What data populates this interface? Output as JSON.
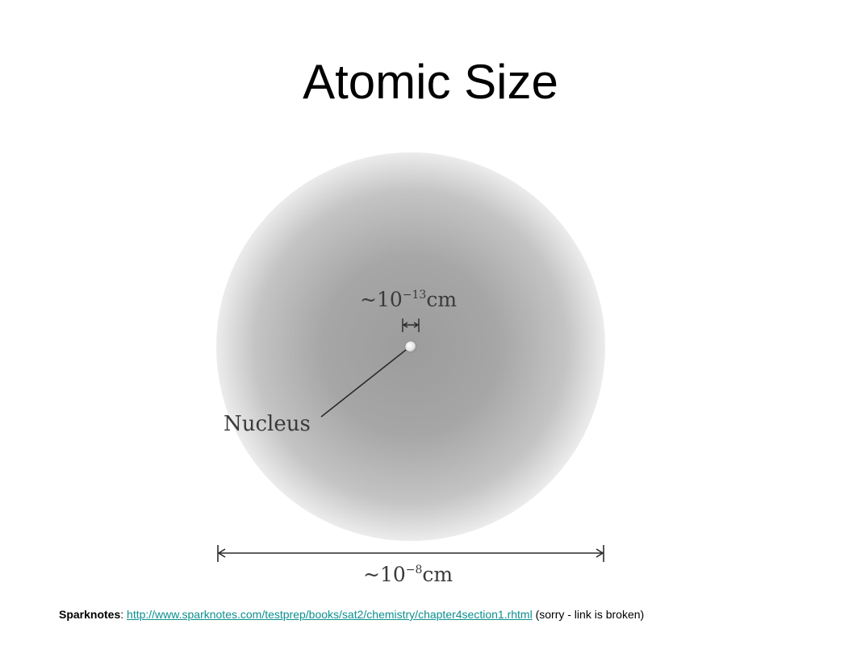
{
  "slide": {
    "title": "Atomic Size"
  },
  "diagram": {
    "nucleus_label": "Nucleus",
    "nucleus_size_prefix": "~10",
    "nucleus_size_exponent": "−13",
    "nucleus_size_unit": "cm",
    "atom_size_prefix": "~10",
    "atom_size_exponent": "−8",
    "atom_size_unit": "cm",
    "colors": {
      "cloud_center": "#9a9a9a",
      "cloud_edge": "#ececec",
      "lines": "#2a2a2a"
    }
  },
  "footer": {
    "source_label": "Sparknotes",
    "separator": ": ",
    "link_text": "http://www.sparknotes.com/testprep/books/sat2/chemistry/chapter4section1.rhtml",
    "note": " (sorry - link is broken)"
  }
}
